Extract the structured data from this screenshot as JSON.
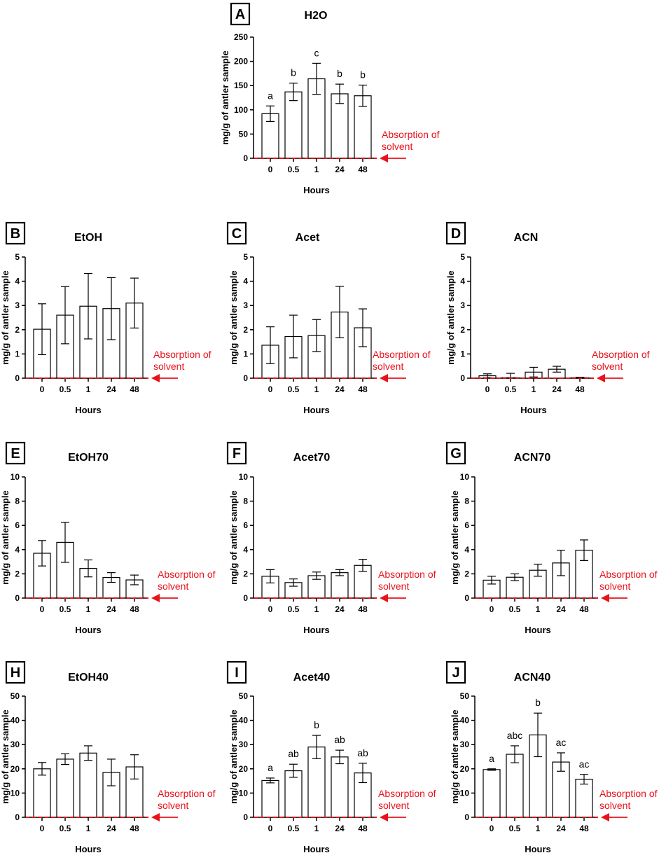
{
  "figure": {
    "x_tick_labels": [
      "0",
      "0.5",
      "1",
      "24",
      "48"
    ],
    "xlabel": "Hours",
    "ylabel": "mg/g of antler sample",
    "annotation_line1": "Absorption of",
    "annotation_line2": "solvent",
    "bar_color": "#ffffff",
    "line_color": "#000000",
    "annotation_color": "#e8121b"
  },
  "chart_data": [
    {
      "panel": "A",
      "title": "H2O",
      "type": "bar",
      "categories": [
        "0",
        "0.5",
        "1",
        "24",
        "48"
      ],
      "values": [
        92,
        137,
        164,
        133,
        129
      ],
      "errors": [
        16,
        18,
        32,
        20,
        22
      ],
      "sig": [
        "a",
        "b",
        "c",
        "b",
        "b"
      ],
      "ylim": [
        0,
        250
      ],
      "yticks": [
        0,
        50,
        100,
        150,
        200,
        250
      ],
      "xlabel": "Hours",
      "ylabel": "mg/g of antler sample"
    },
    {
      "panel": "B",
      "title": "EtOH",
      "type": "bar",
      "categories": [
        "0",
        "0.5",
        "1",
        "24",
        "48"
      ],
      "values": [
        2.02,
        2.6,
        2.97,
        2.87,
        3.1
      ],
      "errors": [
        1.05,
        1.18,
        1.35,
        1.28,
        1.03
      ],
      "sig": [],
      "ylim": [
        0,
        5
      ],
      "yticks": [
        0,
        1,
        2,
        3,
        4,
        5
      ],
      "xlabel": "Hours",
      "ylabel": "mg/g of antler sample"
    },
    {
      "panel": "C",
      "title": "Acet",
      "type": "bar",
      "categories": [
        "0",
        "0.5",
        "1",
        "24",
        "48"
      ],
      "values": [
        1.36,
        1.72,
        1.76,
        2.73,
        2.08
      ],
      "errors": [
        0.76,
        0.88,
        0.66,
        1.06,
        0.78
      ],
      "sig": [],
      "ylim": [
        0,
        5
      ],
      "yticks": [
        0,
        1,
        2,
        3,
        4,
        5
      ],
      "xlabel": "Hours",
      "ylabel": "mg/g of antler sample"
    },
    {
      "panel": "D",
      "title": "ACN",
      "type": "bar",
      "categories": [
        "0",
        "0.5",
        "1",
        "24",
        "48"
      ],
      "values": [
        0.1,
        0.02,
        0.25,
        0.37,
        0.02
      ],
      "errors": [
        0.08,
        0.18,
        0.2,
        0.12,
        0.02
      ],
      "sig": [],
      "ylim": [
        0,
        5
      ],
      "yticks": [
        0,
        1,
        2,
        3,
        4,
        5
      ],
      "xlabel": "Hours",
      "ylabel": "mg/g of antler sample"
    },
    {
      "panel": "E",
      "title": "EtOH70",
      "type": "bar",
      "categories": [
        "0",
        "0.5",
        "1",
        "24",
        "48"
      ],
      "values": [
        3.7,
        4.6,
        2.45,
        1.7,
        1.5
      ],
      "errors": [
        1.05,
        1.65,
        0.7,
        0.4,
        0.4
      ],
      "sig": [],
      "ylim": [
        0,
        10
      ],
      "yticks": [
        0,
        2,
        4,
        6,
        8,
        10
      ],
      "xlabel": "Hours",
      "ylabel": "mg/g of antler sample"
    },
    {
      "panel": "F",
      "title": "Acet70",
      "type": "bar",
      "categories": [
        "0",
        "0.5",
        "1",
        "24",
        "48"
      ],
      "values": [
        1.8,
        1.28,
        1.85,
        2.1,
        2.7
      ],
      "errors": [
        0.55,
        0.3,
        0.3,
        0.25,
        0.5
      ],
      "sig": [],
      "ylim": [
        0,
        10
      ],
      "yticks": [
        0,
        2,
        4,
        6,
        8,
        10
      ],
      "xlabel": "Hours",
      "ylabel": "mg/g of antler sample"
    },
    {
      "panel": "G",
      "title": "ACN70",
      "type": "bar",
      "categories": [
        "0",
        "0.5",
        "1",
        "24",
        "48"
      ],
      "values": [
        1.48,
        1.72,
        2.3,
        2.9,
        3.95
      ],
      "errors": [
        0.32,
        0.28,
        0.5,
        1.05,
        0.85
      ],
      "sig": [],
      "ylim": [
        0,
        10
      ],
      "yticks": [
        0,
        2,
        4,
        6,
        8,
        10
      ],
      "xlabel": "Hours",
      "ylabel": "mg/g of antler sample"
    },
    {
      "panel": "H",
      "title": "EtOH40",
      "type": "bar",
      "categories": [
        "0",
        "0.5",
        "1",
        "24",
        "48"
      ],
      "values": [
        20,
        24,
        26.5,
        18.5,
        20.8
      ],
      "errors": [
        2.6,
        2.2,
        3,
        5.5,
        5
      ],
      "sig": [],
      "ylim": [
        0,
        50
      ],
      "yticks": [
        0,
        10,
        20,
        30,
        40,
        50
      ],
      "xlabel": "Hours",
      "ylabel": "mg/g of antler sample"
    },
    {
      "panel": "I",
      "title": "Acet40",
      "type": "bar",
      "categories": [
        "0",
        "0.5",
        "1",
        "24",
        "48"
      ],
      "values": [
        15.2,
        19.2,
        29,
        24.9,
        18.3
      ],
      "errors": [
        1,
        2.7,
        4.8,
        2.8,
        4
      ],
      "sig": [
        "a",
        "ab",
        "b",
        "ab",
        "ab"
      ],
      "ylim": [
        0,
        50
      ],
      "yticks": [
        0,
        10,
        20,
        30,
        40,
        50
      ],
      "xlabel": "Hours",
      "ylabel": "mg/g of antler sample"
    },
    {
      "panel": "J",
      "title": "ACN40",
      "type": "bar",
      "categories": [
        "0",
        "0.5",
        "1",
        "24",
        "48"
      ],
      "values": [
        19.7,
        26,
        34,
        22.8,
        15.7
      ],
      "errors": [
        0.3,
        3.5,
        9,
        3.8,
        2
      ],
      "sig": [
        "a",
        "abc",
        "b",
        "ac",
        "ac"
      ],
      "ylim": [
        0,
        50
      ],
      "yticks": [
        0,
        10,
        20,
        30,
        40,
        50
      ],
      "xlabel": "Hours",
      "ylabel": "mg/g of antler sample"
    }
  ]
}
